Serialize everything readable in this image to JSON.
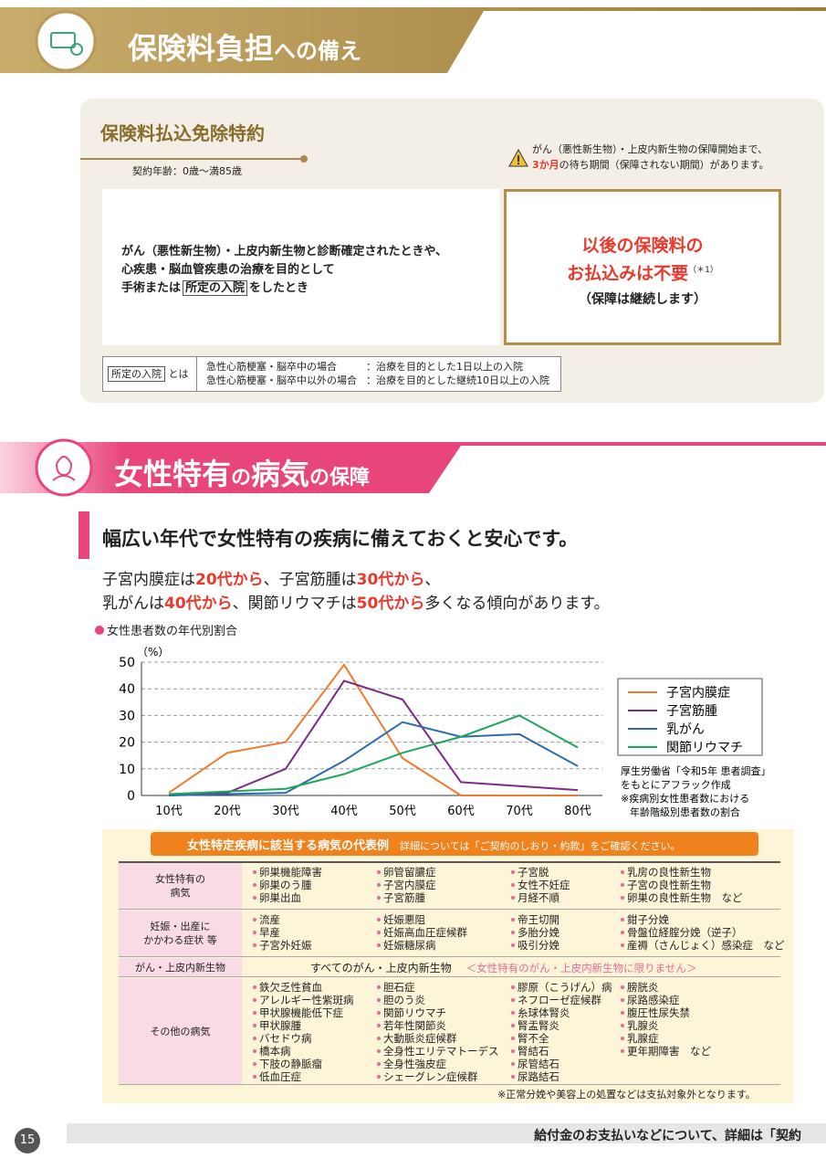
{
  "section1": {
    "heading": [
      "保険料負担",
      "への備え"
    ],
    "rider": {
      "title": "保険料払込免除特約",
      "age": "契約年齢：0歳～満85歳",
      "warning": [
        "がん（悪性新生物）・上皮内新生物の保障開始まで、",
        "3か月",
        "の待ち期間（保障されない期間）があります。"
      ],
      "condition": [
        "がん（悪性新生物）・上皮内新生物と診断確定されたときや、",
        "心疾患・脳血管疾患の治療を目的として",
        "手術または",
        "所定の入院",
        "をしたとき"
      ],
      "benefit": [
        "以後の保険料の",
        "お払込みは不要",
        "（＊1）",
        "（保障は継続します）"
      ],
      "definition": {
        "term": "所定の入院",
        "is": "とは",
        "rows": [
          [
            "急性心筋梗塞・脳卒中の場合",
            "：治療を目的とした1日以上の入院"
          ],
          [
            "急性心筋梗塞・脳卒中以外の場合",
            "：治療を目的とした継続10日以上の入院"
          ]
        ]
      }
    }
  },
  "section2": {
    "heading": [
      "女性特有",
      "の",
      "病気",
      "の保障"
    ],
    "lead": "幅広い年代で女性特有の疾病に備えておくと安心です。",
    "text": [
      [
        "子宮内膜症は",
        "20代から",
        "、子宮筋腫は",
        "30代から",
        "、"
      ],
      [
        "乳がんは",
        "40代から",
        "、関節リウマチは",
        "50代から",
        "多くなる傾向があります。"
      ]
    ]
  },
  "chart_data": {
    "type": "line",
    "title": "女性患者数の年代別割合",
    "y_unit": "（%）",
    "x": [
      "10代",
      "20代",
      "30代",
      "40代",
      "50代",
      "60代",
      "70代",
      "80代"
    ],
    "series": [
      {
        "name": "子宮内膜症",
        "color": "#ee7b30",
        "values": [
          1,
          16,
          20,
          49,
          14,
          0,
          0,
          0
        ]
      },
      {
        "name": "子宮筋腫",
        "color": "#7b2a8c",
        "values": [
          0,
          1,
          10,
          43,
          36,
          5,
          3.5,
          2
        ]
      },
      {
        "name": "乳がん",
        "color": "#2b6cb0",
        "values": [
          0,
          0.5,
          1,
          13,
          27.5,
          22,
          23,
          11
        ]
      },
      {
        "name": "関節リウマチ",
        "color": "#1fa65a",
        "values": [
          0.5,
          1.5,
          2.5,
          8,
          16,
          22,
          30,
          18
        ]
      }
    ],
    "ylim": [
      0,
      50
    ],
    "yticks": [
      0,
      10,
      20,
      30,
      40,
      50
    ],
    "grid": true,
    "source": [
      "厚生労働省「令和5年 患者調査」",
      "をもとにアフラック作成",
      "※疾病別女性患者数における",
      "年齢階級別患者数の割合"
    ]
  },
  "table": {
    "caption": "女性特定疾病に該当する病気の代表例",
    "caption_note": "詳細については「ご契約のしおり・約款」をご確認ください。",
    "rows": [
      {
        "header": [
          "女性特有の",
          "病気"
        ],
        "columns": [
          [
            "卵巣機能障害",
            "卵巣のう腫",
            "卵巣出血"
          ],
          [
            "卵管留膿症",
            "子宮内膜症",
            "子宮筋腫"
          ],
          [
            "子宮脱",
            "女性不妊症",
            "月経不順"
          ],
          [
            "乳房の良性新生物",
            "子宮の良性新生物",
            "卵巣の良性新生物　など"
          ]
        ]
      },
      {
        "header": [
          "妊娠・出産に",
          "かかわる症状 等"
        ],
        "columns": [
          [
            "流産",
            "早産",
            "子宮外妊娠"
          ],
          [
            "妊娠悪阻",
            "妊娠高血圧症候群",
            "妊娠糖尿病"
          ],
          [
            "帝王切開",
            "多胎分娩",
            "吸引分娩"
          ],
          [
            "鉗子分娩",
            "骨盤位経腟分娩（逆子）",
            "産褥（さんじょく）感染症　など"
          ]
        ]
      },
      {
        "header": [
          "がん・上皮内新生物"
        ],
        "content": "すべてのがん・上皮内新生物",
        "note": "＜女性特有のがん・上皮内新生物に限りません＞"
      },
      {
        "header": [
          "その他の病気"
        ],
        "columns": [
          [
            "鉄欠乏性貧血",
            "アレルギー性紫斑病",
            "甲状腺機能低下症",
            "甲状腺腫",
            "バセドウ病",
            "橋本病",
            "下肢の静脈瘤",
            "低血圧症"
          ],
          [
            "胆石症",
            "胆のう炎",
            "関節リウマチ",
            "若年性関節炎",
            "大動脈炎症候群",
            "全身性エリテマトーデス",
            "全身性強皮症",
            "シェーグレン症候群"
          ],
          [
            "膠原（こうげん）病",
            "ネフローゼ症候群",
            "糸球体腎炎",
            "腎盂腎炎",
            "腎不全",
            "腎結石",
            "尿管結石",
            "尿路結石"
          ],
          [
            "膀胱炎",
            "尿路感染症",
            "腹圧性尿失禁",
            "乳腺炎",
            "乳腺症",
            "更年期障害　など"
          ]
        ]
      }
    ],
    "footnote": "※正常分娩や美容上の処置などは支払対象外となります。"
  },
  "footer": {
    "page": "15",
    "text": "給付金のお支払いなどについて、詳細は「契約"
  }
}
